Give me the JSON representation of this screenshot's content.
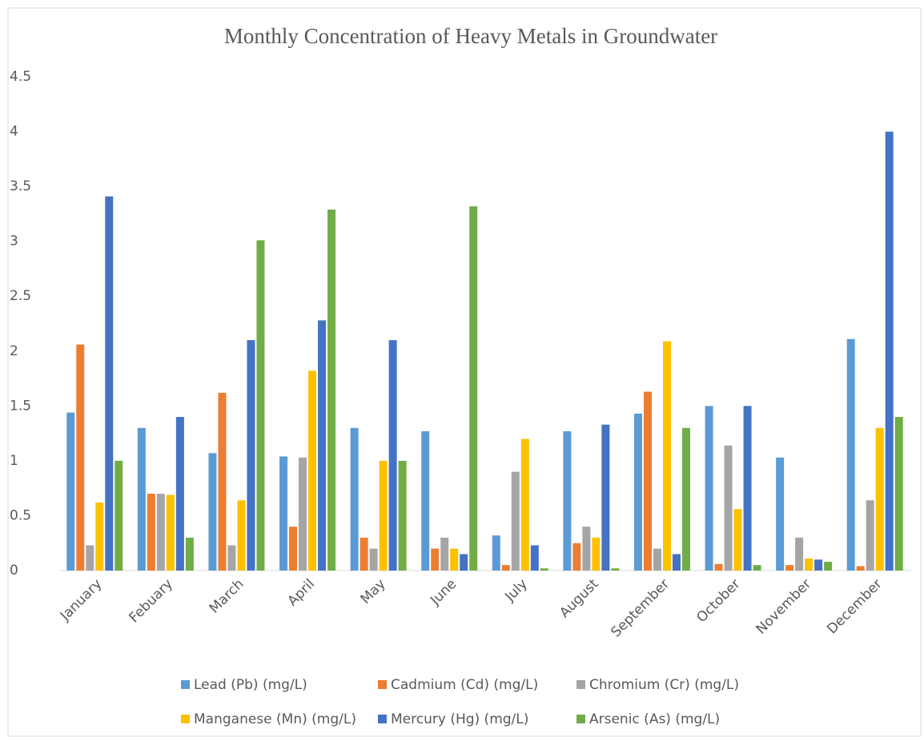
{
  "chart_data": {
    "type": "bar",
    "title": "Monthly Concentration of Heavy Metals in Groundwater",
    "categories": [
      "January",
      "Febuary",
      "March",
      "April",
      "May",
      "June",
      "July",
      "August",
      "September",
      "October",
      "November",
      "December"
    ],
    "series": [
      {
        "name": "Lead (Pb) (mg/L)",
        "color": "#5b9bd5",
        "values": [
          1.44,
          1.3,
          1.07,
          1.04,
          1.3,
          1.27,
          0.32,
          1.27,
          1.43,
          1.5,
          1.03,
          2.11
        ]
      },
      {
        "name": "Cadmium (Cd) (mg/L)",
        "color": "#ed7d31",
        "values": [
          2.06,
          0.7,
          1.62,
          0.4,
          0.3,
          0.2,
          0.05,
          0.25,
          1.63,
          0.06,
          0.05,
          0.04
        ]
      },
      {
        "name": "Chromium (Cr) (mg/L)",
        "color": "#a5a5a5",
        "values": [
          0.23,
          0.7,
          0.23,
          1.03,
          0.2,
          0.3,
          0.9,
          0.4,
          0.2,
          1.14,
          0.3,
          0.64
        ]
      },
      {
        "name": "Manganese (Mn) (mg/L)",
        "color": "#ffc000",
        "values": [
          0.62,
          0.69,
          0.64,
          1.82,
          1.0,
          0.2,
          1.2,
          0.3,
          2.09,
          0.56,
          0.11,
          1.3
        ]
      },
      {
        "name": "Mercury (Hg) (mg/L)",
        "color": "#4472c4",
        "values": [
          3.41,
          1.4,
          2.1,
          2.28,
          2.1,
          0.15,
          0.23,
          1.33,
          0.15,
          1.5,
          0.1,
          4.0
        ]
      },
      {
        "name": "Arsenic (As) (mg/L)",
        "color": "#70ad47",
        "values": [
          1.0,
          0.3,
          3.01,
          3.29,
          1.0,
          3.32,
          0.02,
          0.02,
          1.3,
          0.05,
          0.08,
          1.4
        ]
      }
    ],
    "ylim": [
      0,
      4.5
    ],
    "yticks": [
      0,
      0.5,
      1,
      1.5,
      2,
      2.5,
      3,
      3.5,
      4,
      4.5
    ],
    "grid": false,
    "legend": "bottom"
  }
}
